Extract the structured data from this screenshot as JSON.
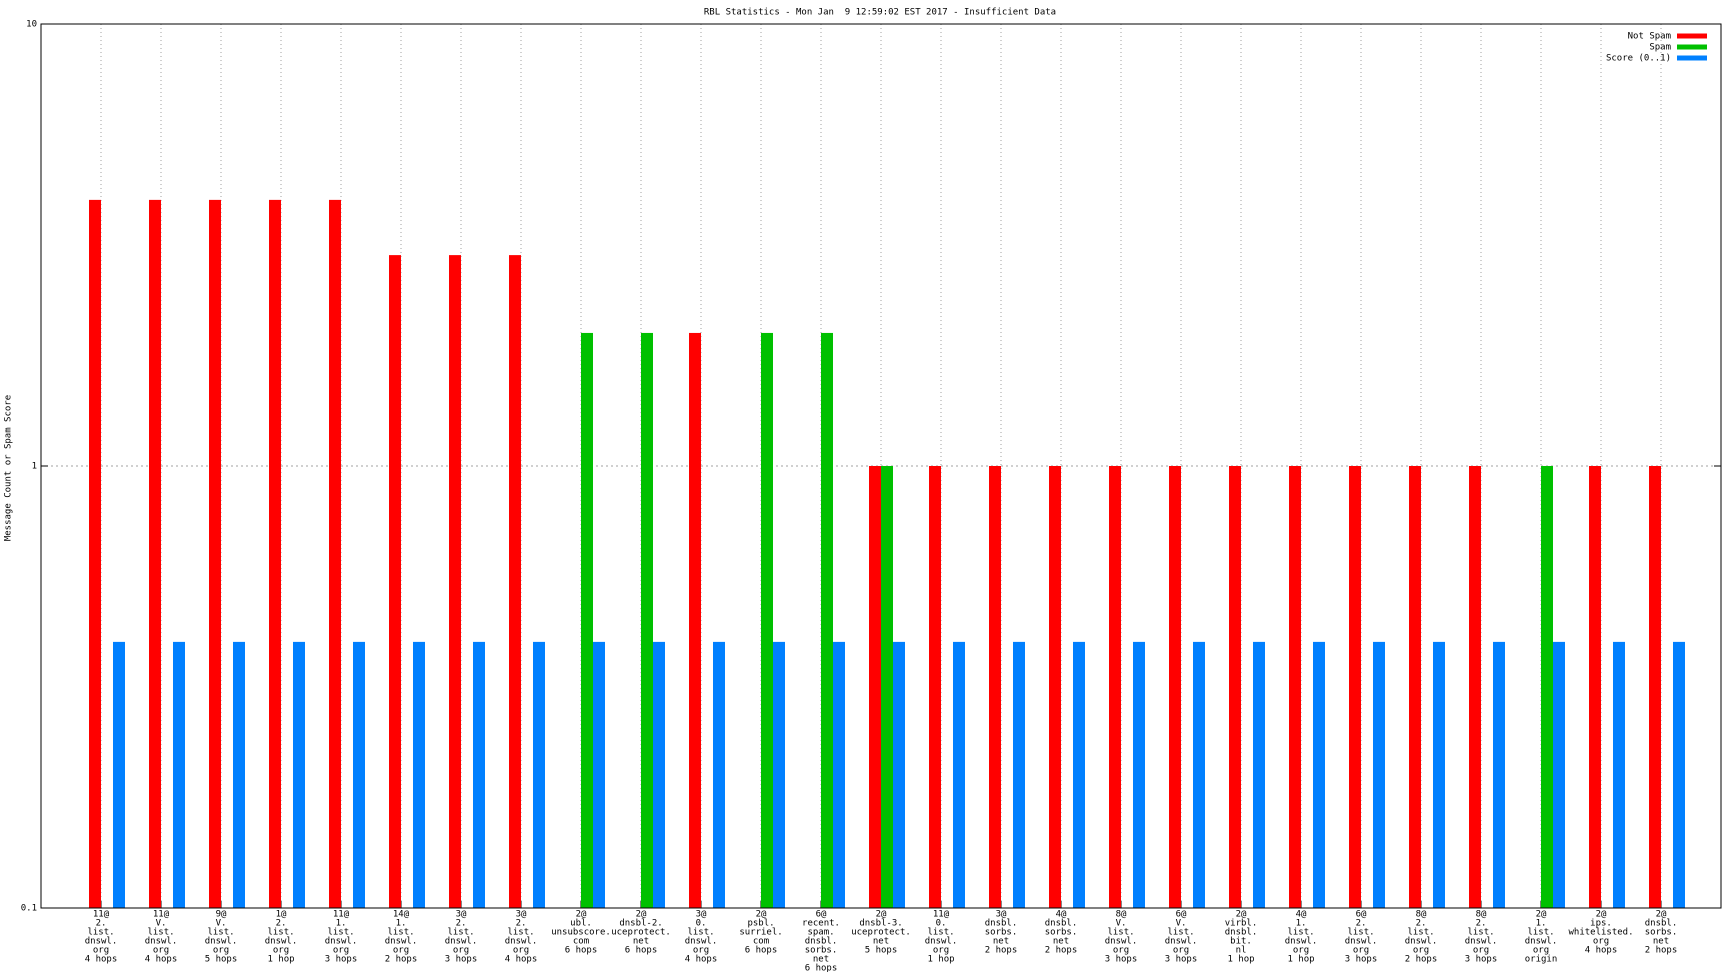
{
  "chart_data": {
    "type": "bar",
    "title": "RBL Statistics - Mon Jan  9 12:59:02 EST 2017 - Insufficient Data",
    "y_label": "Message Count or Spam Score",
    "log_y": true,
    "ylim": [
      0.1,
      10
    ],
    "yticks": [
      0.1,
      1,
      10
    ],
    "grid": true,
    "legend": "top-right",
    "categories": [
      [
        "11@",
        "2.",
        "list.",
        "dnswl.",
        "org",
        "4 hops"
      ],
      [
        "11@",
        "V.",
        "list.",
        "dnswl.",
        "org",
        "4 hops"
      ],
      [
        "9@",
        "V.",
        "list.",
        "dnswl.",
        "org",
        "5 hops"
      ],
      [
        "1@",
        "2.",
        "list.",
        "dnswl.",
        "org",
        "1 hop"
      ],
      [
        "11@",
        "1.",
        "list.",
        "dnswl.",
        "org",
        "3 hops"
      ],
      [
        "14@",
        "1.",
        "list.",
        "dnswl.",
        "org",
        "2 hops"
      ],
      [
        "3@",
        "2.",
        "list.",
        "dnswl.",
        "org",
        "3 hops"
      ],
      [
        "3@",
        "2.",
        "list.",
        "dnswl.",
        "org",
        "4 hops"
      ],
      [
        "2@",
        "ubl.",
        "unsubscore.",
        "com",
        "6 hops"
      ],
      [
        "2@",
        "dnsbl-2.",
        "uceprotect.",
        "net",
        "6 hops"
      ],
      [
        "3@",
        "0.",
        "list.",
        "dnswl.",
        "org",
        "4 hops"
      ],
      [
        "2@",
        "psbl.",
        "surriel.",
        "com",
        "6 hops"
      ],
      [
        "6@",
        "recent.",
        "spam.",
        "dnsbl.",
        "sorbs.",
        "net",
        "6 hops"
      ],
      [
        "2@",
        "dnsbl-3.",
        "uceprotect.",
        "net",
        "5 hops"
      ],
      [
        "11@",
        "0.",
        "list.",
        "dnswl.",
        "org",
        "1 hop"
      ],
      [
        "3@",
        "dnsbl.",
        "sorbs.",
        "net",
        "2 hops"
      ],
      [
        "4@",
        "dnsbl.",
        "sorbs.",
        "net",
        "2 hops"
      ],
      [
        "8@",
        "V.",
        "list.",
        "dnswl.",
        "org",
        "3 hops"
      ],
      [
        "6@",
        "V.",
        "list.",
        "dnswl.",
        "org",
        "3 hops"
      ],
      [
        "2@",
        "virbl.",
        "dnsbl.",
        "bit.",
        "nl",
        "1 hop"
      ],
      [
        "4@",
        "1.",
        "list.",
        "dnswl.",
        "org",
        "1 hop"
      ],
      [
        "6@",
        "2.",
        "list.",
        "dnswl.",
        "org",
        "3 hops"
      ],
      [
        "8@",
        "2.",
        "list.",
        "dnswl.",
        "org",
        "2 hops"
      ],
      [
        "8@",
        "2.",
        "list.",
        "dnswl.",
        "org",
        "3 hops"
      ],
      [
        "2@",
        "1.",
        "list.",
        "dnswl.",
        "org",
        "origin"
      ],
      [
        "2@",
        "ips.",
        "whitelisted.",
        "org",
        "4 hops"
      ],
      [
        "2@",
        "dnsbl.",
        "sorbs.",
        "net",
        "2 hops"
      ]
    ],
    "series": [
      {
        "name": "Not Spam",
        "color": "#ff0000",
        "values": [
          4,
          4,
          4,
          4,
          4,
          3,
          3,
          3,
          null,
          null,
          2,
          null,
          null,
          1,
          1,
          1,
          1,
          1,
          1,
          1,
          1,
          1,
          1,
          1,
          null,
          1,
          1
        ]
      },
      {
        "name": "Spam",
        "color": "#00c000",
        "values": [
          null,
          null,
          null,
          null,
          null,
          null,
          null,
          null,
          2,
          2,
          null,
          2,
          2,
          1,
          null,
          null,
          null,
          null,
          null,
          null,
          null,
          null,
          null,
          null,
          1,
          null,
          null
        ]
      },
      {
        "name": "Score (0..1)",
        "color": "#0080ff",
        "values": [
          0.4,
          0.4,
          0.4,
          0.4,
          0.4,
          0.4,
          0.4,
          0.4,
          0.4,
          0.4,
          0.4,
          0.4,
          0.4,
          0.4,
          0.4,
          0.4,
          0.4,
          0.4,
          0.4,
          0.4,
          0.4,
          0.4,
          0.4,
          0.4,
          0.4,
          0.4,
          0.4
        ]
      }
    ]
  }
}
